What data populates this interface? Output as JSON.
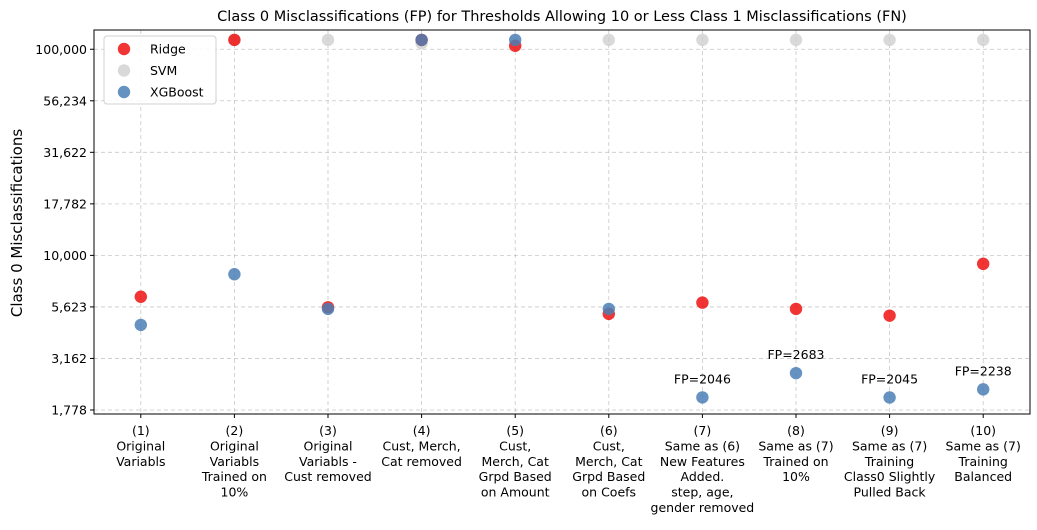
{
  "chart_data": {
    "type": "scatter",
    "title": "Class 0 Misclassifications (FP) for Thresholds Allowing 10 or Less Class 1 Misclassifications (FN)",
    "xlabel": "",
    "ylabel": "Class 0 Misclassifications",
    "y_scale": "log",
    "ylim": [
      1700,
      124000
    ],
    "yticks": [
      1778,
      3162,
      5623,
      10000,
      17782,
      31622,
      56234,
      100000
    ],
    "ytick_labels": [
      "1,778",
      "3,162",
      "5,623",
      "10,000",
      "17,782",
      "31,622",
      "56,234",
      "100,000"
    ],
    "grid": true,
    "legend_position": "top-left",
    "categories": [
      [
        "(1)",
        "Original",
        "Variabls"
      ],
      [
        "(2)",
        "Original",
        "Variabls",
        "Trained on",
        "10%"
      ],
      [
        "(3)",
        "Original",
        "Variabls -",
        "Cust removed"
      ],
      [
        "(4)",
        "Cust, Merch,",
        "Cat removed"
      ],
      [
        "(5)",
        "Cust,",
        "Merch, Cat",
        "Grpd Based",
        "on Amount"
      ],
      [
        "(6)",
        "Cust,",
        "Merch, Cat",
        "Grpd Based",
        "on Coefs"
      ],
      [
        "(7)",
        "Same as (6)",
        "New Features",
        "Added.",
        "step, age,",
        "gender removed"
      ],
      [
        "(8)",
        "Same as (7)",
        "Trained on",
        "10%"
      ],
      [
        "(9)",
        "Same as (7)",
        "Training",
        "Class0 Slightly",
        "Pulled Back"
      ],
      [
        "(10)",
        "Same as (7)",
        "Training",
        "Balanced"
      ]
    ],
    "series": [
      {
        "name": "SVM",
        "color": "#cccccc",
        "opacity": 0.75,
        "values": [
          null,
          111000,
          111000,
          107000,
          null,
          111000,
          111000,
          111000,
          111000,
          111000
        ]
      },
      {
        "name": "Ridge",
        "color": "#ee1111",
        "opacity": 0.85,
        "values": [
          6300,
          111000,
          5600,
          111000,
          104000,
          5200,
          5900,
          5500,
          5100,
          9100
        ]
      },
      {
        "name": "XGBoost",
        "color": "#4a7fb5",
        "opacity": 0.85,
        "values": [
          4600,
          8100,
          5500,
          111000,
          111000,
          5500,
          2046,
          2683,
          2045,
          2238
        ]
      }
    ],
    "annotations": [
      {
        "text": "FP=2046",
        "category": 7,
        "value": 2046
      },
      {
        "text": "FP=2683",
        "category": 8,
        "value": 2683
      },
      {
        "text": "FP=2045",
        "category": 9,
        "value": 2045
      },
      {
        "text": "FP=2238",
        "category": 10,
        "value": 2238
      }
    ],
    "legend": [
      {
        "label": "Ridge",
        "color": "#ee1111"
      },
      {
        "label": "SVM",
        "color": "#cccccc"
      },
      {
        "label": "XGBoost",
        "color": "#4a7fb5"
      }
    ]
  }
}
